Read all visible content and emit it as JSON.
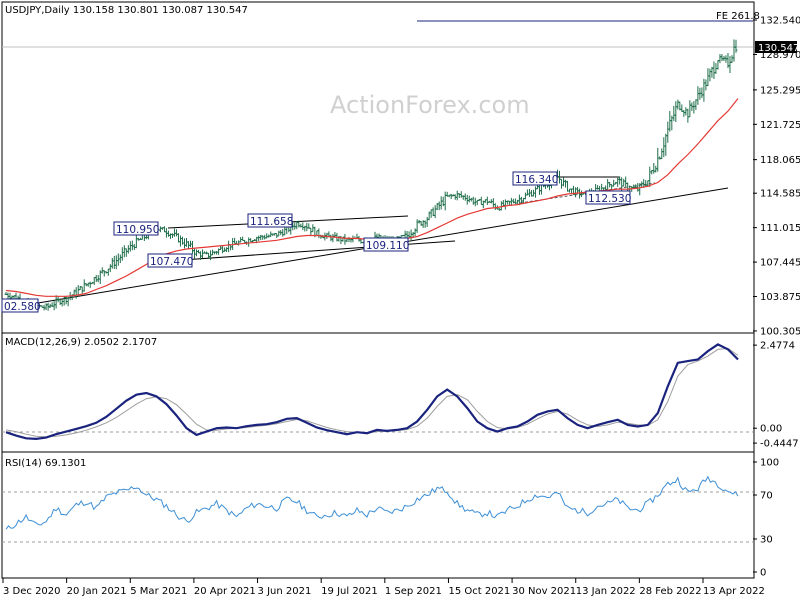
{
  "header": {
    "symbol_line": "USDJPY,Daily  130.158 130.801 130.087 130.547",
    "watermark": "ActionForex.com",
    "fe_label": "FE 261.8",
    "current_price_label": "130.547"
  },
  "annotations": {
    "low_102": "02.580",
    "high_110": "110.950",
    "low_107": "107.470",
    "high_111": "111.658",
    "low_109": "109.110",
    "high_116": "116.340",
    "low_113": "112.530"
  },
  "colors": {
    "price_bars": "#1f6e4a",
    "ma_line": "#e53935",
    "trendline": "#000000",
    "macd_line": "#1a237e",
    "signal_line": "#9e9e9e",
    "rsi_line": "#3d8fd6",
    "label_border": "#1a237e"
  },
  "chart_data": [
    {
      "type": "line",
      "title": "USDJPY,Daily",
      "y_ticks": [
        "132.540",
        "128.970",
        "125.295",
        "121.725",
        "118.065",
        "114.585",
        "111.015",
        "107.445",
        "103.875",
        "100.305"
      ],
      "ylim": [
        100.3,
        134.2
      ],
      "x_ticks": [
        "3 Dec 2020",
        "20 Jan 2021",
        "5 Mar 2021",
        "20 Apr 2021",
        "3 Jun 2021",
        "19 Jul 2021",
        "1 Sep 2021",
        "15 Oct 2021",
        "30 Nov 2021",
        "13 Jan 2022",
        "28 Feb 2022",
        "13 Apr 2022"
      ],
      "series": [
        {
          "values": [
            104.1,
            103.8,
            103.3,
            102.9,
            102.7,
            103.3,
            103.7,
            104.3,
            105.1,
            105.9,
            106.7,
            107.6,
            108.6,
            109.5,
            110.2,
            110.9,
            110.7,
            110.0,
            109.3,
            108.4,
            108.1,
            108.6,
            109.1,
            109.4,
            109.7,
            110.0,
            110.1,
            110.3,
            110.8,
            111.5,
            111.2,
            110.4,
            110.1,
            109.9,
            109.7,
            109.8,
            109.5,
            110.0,
            109.7,
            109.7,
            110.2,
            111.3,
            112.0,
            113.1,
            114.2,
            114.4,
            114.1,
            113.6,
            113.8,
            113.1,
            113.5,
            113.9,
            114.4,
            115.0,
            115.6,
            116.3,
            115.1,
            114.6,
            114.4,
            114.9,
            115.4,
            115.9,
            115.2,
            115.0,
            115.9,
            118.2,
            121.1,
            123.8,
            122.9,
            124.6,
            126.4,
            128.5,
            128.2,
            130.5
          ]
        },
        {
          "values": [
            104.5,
            104.4,
            104.2,
            104.0,
            103.9,
            103.9,
            103.9,
            104.0,
            104.2,
            104.6,
            105.0,
            105.5,
            106.0,
            106.6,
            107.2,
            107.8,
            108.3,
            108.6,
            108.8,
            108.9,
            109.0,
            109.1,
            109.2,
            109.3,
            109.4,
            109.5,
            109.6,
            109.7,
            109.9,
            110.1,
            110.2,
            110.2,
            110.1,
            110.0,
            109.9,
            109.9,
            109.8,
            109.8,
            109.8,
            109.8,
            109.9,
            110.1,
            110.5,
            111.0,
            111.5,
            112.0,
            112.4,
            112.7,
            113.0,
            113.1,
            113.3,
            113.4,
            113.6,
            113.8,
            114.0,
            114.3,
            114.5,
            114.6,
            114.7,
            114.8,
            114.9,
            115.0,
            115.0,
            115.1,
            115.3,
            115.7,
            116.5,
            117.6,
            118.6,
            119.7,
            120.9,
            122.1,
            123.1,
            124.4
          ]
        }
      ]
    },
    {
      "type": "line",
      "title": "MACD(12,26,9) 2.0502 2.1707",
      "y_ticks": [
        "2.4774",
        "0.00",
        "-0.4447"
      ],
      "ylim": [
        -0.65,
        2.75
      ],
      "series": [
        {
          "values": [
            -0.12,
            -0.22,
            -0.3,
            -0.32,
            -0.28,
            -0.18,
            -0.1,
            -0.02,
            0.06,
            0.16,
            0.34,
            0.58,
            0.82,
            1.0,
            1.05,
            0.95,
            0.72,
            0.38,
            0.0,
            -0.2,
            -0.1,
            0.0,
            0.02,
            0.0,
            0.06,
            0.1,
            0.12,
            0.18,
            0.28,
            0.3,
            0.16,
            0.02,
            -0.06,
            -0.12,
            -0.18,
            -0.12,
            -0.15,
            -0.05,
            -0.08,
            -0.05,
            0.0,
            0.2,
            0.55,
            0.95,
            1.15,
            0.95,
            0.6,
            0.2,
            0.0,
            -0.1,
            0.0,
            0.05,
            0.2,
            0.4,
            0.5,
            0.55,
            0.3,
            0.1,
            0.0,
            0.1,
            0.18,
            0.25,
            0.1,
            0.05,
            0.1,
            0.45,
            1.25,
            1.95,
            2.0,
            2.05,
            2.3,
            2.5,
            2.35,
            2.05
          ]
        },
        {
          "values": [
            -0.05,
            -0.1,
            -0.18,
            -0.24,
            -0.26,
            -0.24,
            -0.2,
            -0.14,
            -0.06,
            0.04,
            0.16,
            0.32,
            0.52,
            0.72,
            0.88,
            0.94,
            0.88,
            0.7,
            0.42,
            0.12,
            -0.05,
            -0.06,
            -0.02,
            0.0,
            0.02,
            0.06,
            0.09,
            0.13,
            0.2,
            0.26,
            0.22,
            0.12,
            0.02,
            -0.05,
            -0.1,
            -0.12,
            -0.13,
            -0.1,
            -0.09,
            -0.07,
            -0.04,
            0.06,
            0.3,
            0.65,
            0.95,
            1.0,
            0.85,
            0.5,
            0.2,
            0.02,
            -0.02,
            0.02,
            0.12,
            0.28,
            0.42,
            0.5,
            0.42,
            0.24,
            0.1,
            0.05,
            0.1,
            0.18,
            0.15,
            0.1,
            0.08,
            0.25,
            0.8,
            1.55,
            1.9,
            2.0,
            2.15,
            2.35,
            2.38,
            2.17
          ]
        }
      ]
    },
    {
      "type": "line",
      "title": "RSI(14) 69.1301",
      "y_ticks": [
        "100",
        "70",
        "30",
        "0"
      ],
      "ylim": [
        0,
        100
      ],
      "reference_levels": [
        70,
        30
      ],
      "series": [
        {
          "values": [
            38,
            44,
            50,
            42,
            46,
            58,
            52,
            61,
            64,
            58,
            68,
            72,
            74,
            78,
            70,
            66,
            60,
            52,
            46,
            54,
            58,
            62,
            56,
            50,
            58,
            62,
            60,
            58,
            66,
            64,
            56,
            50,
            52,
            54,
            50,
            56,
            52,
            58,
            54,
            56,
            60,
            66,
            70,
            76,
            74,
            62,
            56,
            52,
            54,
            50,
            56,
            60,
            66,
            70,
            68,
            72,
            58,
            56,
            54,
            60,
            62,
            66,
            58,
            56,
            62,
            70,
            80,
            84,
            72,
            76,
            86,
            80,
            74,
            69
          ]
        }
      ]
    }
  ]
}
